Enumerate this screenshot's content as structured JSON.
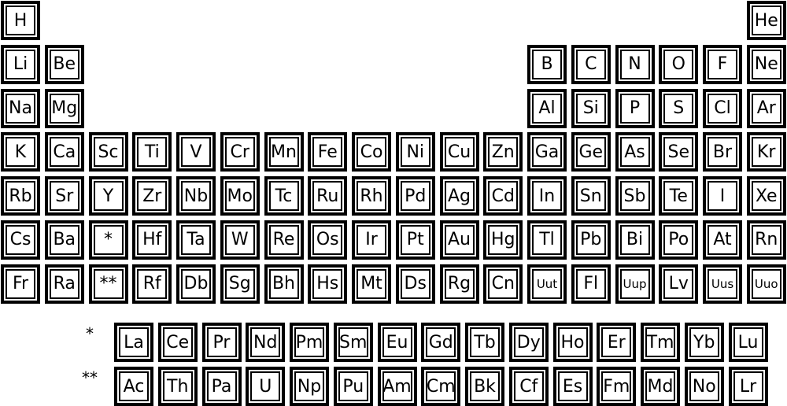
{
  "periods": [
    {
      "row": 1,
      "elements": [
        {
          "col": 1,
          "symbol": "H"
        },
        {
          "col": 18,
          "symbol": "He"
        }
      ]
    },
    {
      "row": 2,
      "elements": [
        {
          "col": 1,
          "symbol": "Li"
        },
        {
          "col": 2,
          "symbol": "Be"
        },
        {
          "col": 13,
          "symbol": "B"
        },
        {
          "col": 14,
          "symbol": "C"
        },
        {
          "col": 15,
          "symbol": "N"
        },
        {
          "col": 16,
          "symbol": "O"
        },
        {
          "col": 17,
          "symbol": "F"
        },
        {
          "col": 18,
          "symbol": "Ne"
        }
      ]
    },
    {
      "row": 3,
      "elements": [
        {
          "col": 1,
          "symbol": "Na"
        },
        {
          "col": 2,
          "symbol": "Mg"
        },
        {
          "col": 13,
          "symbol": "Al"
        },
        {
          "col": 14,
          "symbol": "Si"
        },
        {
          "col": 15,
          "symbol": "P"
        },
        {
          "col": 16,
          "symbol": "S"
        },
        {
          "col": 17,
          "symbol": "Cl"
        },
        {
          "col": 18,
          "symbol": "Ar"
        }
      ]
    },
    {
      "row": 4,
      "elements": [
        {
          "col": 1,
          "symbol": "K"
        },
        {
          "col": 2,
          "symbol": "Ca"
        },
        {
          "col": 3,
          "symbol": "Sc"
        },
        {
          "col": 4,
          "symbol": "Ti"
        },
        {
          "col": 5,
          "symbol": "V"
        },
        {
          "col": 6,
          "symbol": "Cr"
        },
        {
          "col": 7,
          "symbol": "Mn"
        },
        {
          "col": 8,
          "symbol": "Fe"
        },
        {
          "col": 9,
          "symbol": "Co"
        },
        {
          "col": 10,
          "symbol": "Ni"
        },
        {
          "col": 11,
          "symbol": "Cu"
        },
        {
          "col": 12,
          "symbol": "Zn"
        },
        {
          "col": 13,
          "symbol": "Ga"
        },
        {
          "col": 14,
          "symbol": "Ge"
        },
        {
          "col": 15,
          "symbol": "As"
        },
        {
          "col": 16,
          "symbol": "Se"
        },
        {
          "col": 17,
          "symbol": "Br"
        },
        {
          "col": 18,
          "symbol": "Kr"
        }
      ]
    },
    {
      "row": 5,
      "elements": [
        {
          "col": 1,
          "symbol": "Rb"
        },
        {
          "col": 2,
          "symbol": "Sr"
        },
        {
          "col": 3,
          "symbol": "Y"
        },
        {
          "col": 4,
          "symbol": "Zr"
        },
        {
          "col": 5,
          "symbol": "Nb"
        },
        {
          "col": 6,
          "symbol": "Mo"
        },
        {
          "col": 7,
          "symbol": "Tc"
        },
        {
          "col": 8,
          "symbol": "Ru"
        },
        {
          "col": 9,
          "symbol": "Rh"
        },
        {
          "col": 10,
          "symbol": "Pd"
        },
        {
          "col": 11,
          "symbol": "Ag"
        },
        {
          "col": 12,
          "symbol": "Cd"
        },
        {
          "col": 13,
          "symbol": "In"
        },
        {
          "col": 14,
          "symbol": "Sn"
        },
        {
          "col": 15,
          "symbol": "Sb"
        },
        {
          "col": 16,
          "symbol": "Te"
        },
        {
          "col": 17,
          "symbol": "I"
        },
        {
          "col": 18,
          "symbol": "Xe"
        }
      ]
    },
    {
      "row": 6,
      "elements": [
        {
          "col": 1,
          "symbol": "Cs"
        },
        {
          "col": 2,
          "symbol": "Ba"
        },
        {
          "col": 3,
          "symbol": "*"
        },
        {
          "col": 4,
          "symbol": "Hf"
        },
        {
          "col": 5,
          "symbol": "Ta"
        },
        {
          "col": 6,
          "symbol": "W"
        },
        {
          "col": 7,
          "symbol": "Re"
        },
        {
          "col": 8,
          "symbol": "Os"
        },
        {
          "col": 9,
          "symbol": "Ir"
        },
        {
          "col": 10,
          "symbol": "Pt"
        },
        {
          "col": 11,
          "symbol": "Au"
        },
        {
          "col": 12,
          "symbol": "Hg"
        },
        {
          "col": 13,
          "symbol": "Tl"
        },
        {
          "col": 14,
          "symbol": "Pb"
        },
        {
          "col": 15,
          "symbol": "Bi"
        },
        {
          "col": 16,
          "symbol": "Po"
        },
        {
          "col": 17,
          "symbol": "At"
        },
        {
          "col": 18,
          "symbol": "Rn"
        }
      ]
    },
    {
      "row": 7,
      "elements": [
        {
          "col": 1,
          "symbol": "Fr"
        },
        {
          "col": 2,
          "symbol": "Ra"
        },
        {
          "col": 3,
          "symbol": "**"
        },
        {
          "col": 4,
          "symbol": "Rf"
        },
        {
          "col": 5,
          "symbol": "Db"
        },
        {
          "col": 6,
          "symbol": "Sg"
        },
        {
          "col": 7,
          "symbol": "Bh"
        },
        {
          "col": 8,
          "symbol": "Hs"
        },
        {
          "col": 9,
          "symbol": "Mt"
        },
        {
          "col": 10,
          "symbol": "Ds"
        },
        {
          "col": 11,
          "symbol": "Rg"
        },
        {
          "col": 12,
          "symbol": "Cn"
        },
        {
          "col": 13,
          "symbol": "Uut"
        },
        {
          "col": 14,
          "symbol": "Fl"
        },
        {
          "col": 15,
          "symbol": "Uup"
        },
        {
          "col": 16,
          "symbol": "Lv"
        },
        {
          "col": 17,
          "symbol": "Uus"
        },
        {
          "col": 18,
          "symbol": "Uuo"
        }
      ]
    }
  ],
  "series": [
    {
      "marker": "*",
      "symbols": [
        "La",
        "Ce",
        "Pr",
        "Nd",
        "Pm",
        "Sm",
        "Eu",
        "Gd",
        "Tb",
        "Dy",
        "Ho",
        "Er",
        "Tm",
        "Yb",
        "Lu"
      ]
    },
    {
      "marker": "**",
      "symbols": [
        "Ac",
        "Th",
        "Pa",
        "U",
        "Np",
        "Pu",
        "Am",
        "Cm",
        "Bk",
        "Cf",
        "Es",
        "Fm",
        "Md",
        "No",
        "Lr"
      ]
    }
  ]
}
